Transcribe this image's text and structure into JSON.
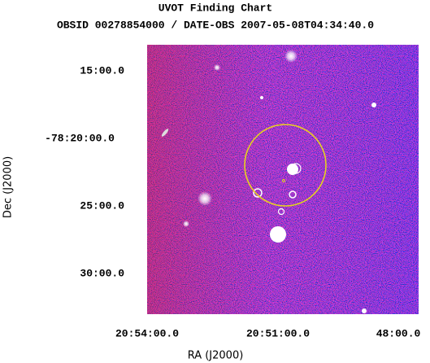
{
  "header": {
    "title": "UVOT Finding Chart",
    "subtitle": "OBSID 00278854000 / DATE-OBS 2007-05-08T04:34:40.0"
  },
  "axes": {
    "x": {
      "label": "RA (J2000)",
      "ticks": [
        "20:54:00.0",
        "20:51:00.0",
        "48:00.0"
      ]
    },
    "y": {
      "label": "Dec (J2000)",
      "ticks": [
        "15:00.0",
        "-78:20:00.0",
        "25:00.0",
        "30:00.0"
      ]
    }
  }
}
